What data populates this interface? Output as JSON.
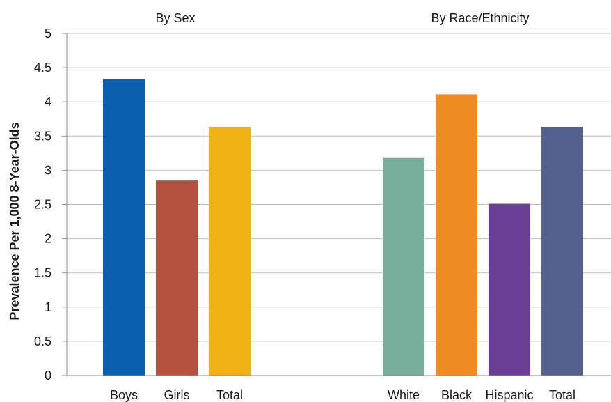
{
  "chart_data": {
    "type": "bar",
    "ylabel": "Prevalence Per 1,000 8-Year-Olds",
    "ylim": [
      0,
      5
    ],
    "yticks": [
      "0",
      "0.5",
      "1",
      "1.5",
      "2",
      "2.5",
      "3",
      "3.5",
      "4",
      "4.5",
      "5"
    ],
    "grid": true,
    "groups": [
      {
        "label": "By Sex",
        "categories": [
          "Boys",
          "Girls",
          "Total"
        ],
        "values": [
          4.33,
          2.85,
          3.63
        ],
        "colors": [
          "#0a5fac",
          "#b5523f",
          "#f0b215"
        ]
      },
      {
        "label": "By Race/Ethnicity",
        "categories": [
          "White",
          "Black",
          "Hispanic",
          "Total"
        ],
        "values": [
          3.18,
          4.11,
          2.51,
          3.63
        ],
        "colors": [
          "#78ae9c",
          "#ee8b22",
          "#6b3f95",
          "#54618f"
        ]
      }
    ]
  }
}
